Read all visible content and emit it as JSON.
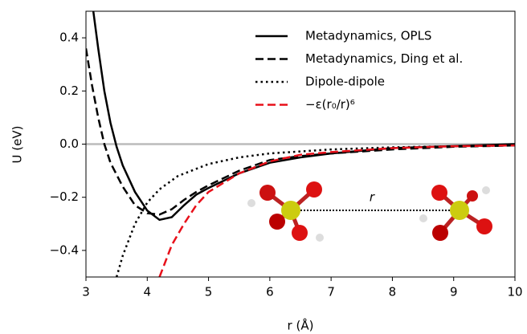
{
  "chart_data": {
    "type": "line",
    "xlabel": "r (Å)",
    "ylabel": "U (eV)",
    "xlim": [
      3,
      10
    ],
    "ylim": [
      -0.5,
      0.5
    ],
    "xticks": [
      3,
      4,
      5,
      6,
      7,
      8,
      9,
      10
    ],
    "yticks": [
      {
        "value": -0.4,
        "label": "−0.4"
      },
      {
        "value": -0.2,
        "label": "−0.2"
      },
      {
        "value": 0,
        "label": "0.0"
      },
      0.2,
      0.4
    ],
    "reference_line": 0,
    "legend": "upper right",
    "annotation": "r",
    "series": [
      {
        "name": "Metadynamics, OPLS",
        "color": "#000000",
        "dash": "solid",
        "x": [
          3.12,
          3.2,
          3.3,
          3.4,
          3.5,
          3.6,
          3.8,
          4.0,
          4.2,
          4.4,
          4.6,
          4.8,
          5.0,
          5.5,
          6.0,
          6.5,
          7,
          7.5,
          8,
          9,
          10
        ],
        "values": [
          0.5,
          0.36,
          0.2,
          0.08,
          -0.01,
          -0.08,
          -0.18,
          -0.25,
          -0.285,
          -0.275,
          -0.23,
          -0.19,
          -0.165,
          -0.11,
          -0.07,
          -0.05,
          -0.035,
          -0.025,
          -0.015,
          -0.007,
          0
        ]
      },
      {
        "name": "Metadynamics, Ding et al.",
        "color": "#000000",
        "dash": "dashed",
        "x": [
          3.0,
          3.1,
          3.2,
          3.3,
          3.4,
          3.6,
          3.8,
          4.0,
          4.2,
          4.4,
          4.6,
          4.8,
          5.0,
          5.5,
          6.0,
          6.5,
          7,
          8,
          9,
          10
        ],
        "values": [
          0.36,
          0.22,
          0.1,
          0.0,
          -0.07,
          -0.16,
          -0.23,
          -0.26,
          -0.265,
          -0.245,
          -0.21,
          -0.18,
          -0.155,
          -0.1,
          -0.06,
          -0.045,
          -0.035,
          -0.02,
          -0.01,
          -0.005
        ]
      },
      {
        "name": "Dipole-dipole",
        "color": "#000000",
        "dash": "dotted",
        "x": [
          3.5,
          3.6,
          3.8,
          4.0,
          4.2,
          4.5,
          5.0,
          5.5,
          6,
          7,
          8,
          9,
          10
        ],
        "values": [
          -0.5,
          -0.42,
          -0.3,
          -0.22,
          -0.17,
          -0.12,
          -0.075,
          -0.05,
          -0.035,
          -0.02,
          -0.012,
          -0.008,
          -0.005
        ]
      },
      {
        "name": "−ε(r₀/r)⁶",
        "color": "#e8101a",
        "dash": "dashed",
        "x": [
          4.2,
          4.4,
          4.6,
          4.8,
          5.0,
          5.5,
          6,
          6.5,
          7,
          8,
          9,
          10
        ],
        "values": [
          -0.5,
          -0.38,
          -0.3,
          -0.23,
          -0.18,
          -0.11,
          -0.065,
          -0.04,
          -0.03,
          -0.015,
          -0.008,
          -0.005
        ]
      }
    ]
  }
}
